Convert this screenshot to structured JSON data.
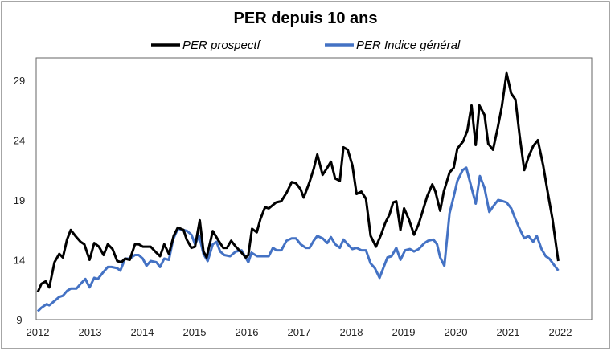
{
  "chart_data": {
    "type": "line",
    "title": "PER depuis 10 ans",
    "xlabel": "",
    "ylabel": "",
    "xlim": [
      2012,
      2022.6
    ],
    "ylim": [
      9,
      31
    ],
    "x_ticks": [
      "2012",
      "2013",
      "2014",
      "2015",
      "2016",
      "2017",
      "2018",
      "2019",
      "2020",
      "2021",
      "2022"
    ],
    "y_ticks": [
      "9",
      "14",
      "19",
      "24",
      "29"
    ],
    "grid": false,
    "legend_position": "top",
    "series": [
      {
        "name": "PER prospectf",
        "color": "#000000",
        "points": [
          [
            2012.0,
            11.3
          ],
          [
            2012.07,
            12.0
          ],
          [
            2012.15,
            12.2
          ],
          [
            2012.22,
            11.7
          ],
          [
            2012.32,
            13.8
          ],
          [
            2012.41,
            14.5
          ],
          [
            2012.48,
            14.2
          ],
          [
            2012.56,
            15.7
          ],
          [
            2012.63,
            16.5
          ],
          [
            2012.72,
            16.0
          ],
          [
            2012.82,
            15.5
          ],
          [
            2012.89,
            15.3
          ],
          [
            2012.99,
            14.0
          ],
          [
            2013.08,
            15.4
          ],
          [
            2013.17,
            15.1
          ],
          [
            2013.26,
            14.4
          ],
          [
            2013.34,
            15.3
          ],
          [
            2013.43,
            14.9
          ],
          [
            2013.52,
            13.9
          ],
          [
            2013.6,
            13.8
          ],
          [
            2013.67,
            14.1
          ],
          [
            2013.76,
            14.0
          ],
          [
            2013.86,
            15.3
          ],
          [
            2013.93,
            15.3
          ],
          [
            2014.01,
            15.1
          ],
          [
            2014.16,
            15.1
          ],
          [
            2014.27,
            14.6
          ],
          [
            2014.34,
            14.3
          ],
          [
            2014.42,
            15.3
          ],
          [
            2014.51,
            14.5
          ],
          [
            2014.6,
            16.0
          ],
          [
            2014.68,
            16.7
          ],
          [
            2014.79,
            16.5
          ],
          [
            2014.85,
            15.7
          ],
          [
            2014.94,
            15.0
          ],
          [
            2015.01,
            15.1
          ],
          [
            2015.1,
            17.3
          ],
          [
            2015.17,
            14.7
          ],
          [
            2015.23,
            14.2
          ],
          [
            2015.35,
            16.4
          ],
          [
            2015.46,
            15.6
          ],
          [
            2015.55,
            15.0
          ],
          [
            2015.62,
            15.0
          ],
          [
            2015.7,
            15.6
          ],
          [
            2015.79,
            15.1
          ],
          [
            2015.9,
            14.6
          ],
          [
            2015.98,
            14.2
          ],
          [
            2016.03,
            14.4
          ],
          [
            2016.1,
            16.6
          ],
          [
            2016.19,
            16.3
          ],
          [
            2016.26,
            17.4
          ],
          [
            2016.35,
            18.4
          ],
          [
            2016.42,
            18.3
          ],
          [
            2016.56,
            18.8
          ],
          [
            2016.66,
            18.9
          ],
          [
            2016.76,
            19.6
          ],
          [
            2016.86,
            20.5
          ],
          [
            2016.94,
            20.4
          ],
          [
            2017.03,
            19.9
          ],
          [
            2017.09,
            19.2
          ],
          [
            2017.2,
            20.5
          ],
          [
            2017.28,
            21.6
          ],
          [
            2017.35,
            22.8
          ],
          [
            2017.45,
            21.1
          ],
          [
            2017.54,
            21.7
          ],
          [
            2017.61,
            22.2
          ],
          [
            2017.69,
            20.8
          ],
          [
            2017.78,
            20.6
          ],
          [
            2017.85,
            23.4
          ],
          [
            2017.93,
            23.2
          ],
          [
            2018.02,
            21.9
          ],
          [
            2018.1,
            19.5
          ],
          [
            2018.19,
            19.7
          ],
          [
            2018.28,
            19.1
          ],
          [
            2018.37,
            16.0
          ],
          [
            2018.47,
            15.1
          ],
          [
            2018.57,
            16.1
          ],
          [
            2018.65,
            17.1
          ],
          [
            2018.73,
            17.8
          ],
          [
            2018.8,
            18.8
          ],
          [
            2018.86,
            18.9
          ],
          [
            2018.94,
            16.5
          ],
          [
            2019.01,
            18.3
          ],
          [
            2019.1,
            17.4
          ],
          [
            2019.2,
            16.1
          ],
          [
            2019.29,
            17.0
          ],
          [
            2019.36,
            18.0
          ],
          [
            2019.45,
            19.3
          ],
          [
            2019.55,
            20.3
          ],
          [
            2019.61,
            19.7
          ],
          [
            2019.7,
            18.1
          ],
          [
            2019.77,
            19.7
          ],
          [
            2019.88,
            21.3
          ],
          [
            2019.96,
            21.7
          ],
          [
            2020.03,
            23.3
          ],
          [
            2020.14,
            23.9
          ],
          [
            2020.22,
            24.8
          ],
          [
            2020.3,
            26.9
          ],
          [
            2020.38,
            23.6
          ],
          [
            2020.45,
            26.9
          ],
          [
            2020.55,
            26.1
          ],
          [
            2020.62,
            23.7
          ],
          [
            2020.71,
            23.2
          ],
          [
            2020.8,
            25.0
          ],
          [
            2020.88,
            26.8
          ],
          [
            2020.97,
            29.6
          ],
          [
            2021.06,
            27.9
          ],
          [
            2021.14,
            27.4
          ],
          [
            2021.22,
            24.4
          ],
          [
            2021.31,
            21.5
          ],
          [
            2021.39,
            22.6
          ],
          [
            2021.48,
            23.5
          ],
          [
            2021.57,
            24.0
          ],
          [
            2021.67,
            21.9
          ],
          [
            2021.76,
            19.6
          ],
          [
            2021.85,
            17.4
          ],
          [
            2021.96,
            13.9
          ]
        ]
      },
      {
        "name": "PER Indice général",
        "color": "#4472C4",
        "points": [
          [
            2012.0,
            9.7
          ],
          [
            2012.07,
            10.0
          ],
          [
            2012.17,
            10.3
          ],
          [
            2012.22,
            10.2
          ],
          [
            2012.33,
            10.6
          ],
          [
            2012.41,
            10.9
          ],
          [
            2012.48,
            11.0
          ],
          [
            2012.56,
            11.4
          ],
          [
            2012.63,
            11.6
          ],
          [
            2012.74,
            11.6
          ],
          [
            2012.82,
            12.0
          ],
          [
            2012.91,
            12.4
          ],
          [
            2012.99,
            11.7
          ],
          [
            2013.08,
            12.5
          ],
          [
            2013.15,
            12.4
          ],
          [
            2013.24,
            12.9
          ],
          [
            2013.34,
            13.4
          ],
          [
            2013.41,
            13.4
          ],
          [
            2013.52,
            13.3
          ],
          [
            2013.58,
            13.1
          ],
          [
            2013.67,
            14.1
          ],
          [
            2013.76,
            14.1
          ],
          [
            2013.86,
            14.4
          ],
          [
            2013.93,
            14.4
          ],
          [
            2014.01,
            14.1
          ],
          [
            2014.08,
            13.5
          ],
          [
            2014.16,
            13.9
          ],
          [
            2014.27,
            13.8
          ],
          [
            2014.34,
            13.4
          ],
          [
            2014.42,
            14.1
          ],
          [
            2014.51,
            14.0
          ],
          [
            2014.59,
            15.7
          ],
          [
            2014.68,
            16.6
          ],
          [
            2014.79,
            16.5
          ],
          [
            2014.86,
            16.4
          ],
          [
            2014.94,
            16.1
          ],
          [
            2015.01,
            15.3
          ],
          [
            2015.09,
            16.0
          ],
          [
            2015.17,
            14.5
          ],
          [
            2015.25,
            13.9
          ],
          [
            2015.35,
            15.3
          ],
          [
            2015.42,
            15.5
          ],
          [
            2015.49,
            14.7
          ],
          [
            2015.57,
            14.4
          ],
          [
            2015.68,
            14.3
          ],
          [
            2015.79,
            14.7
          ],
          [
            2015.9,
            14.8
          ],
          [
            2016.03,
            13.8
          ],
          [
            2016.09,
            14.6
          ],
          [
            2016.2,
            14.3
          ],
          [
            2016.29,
            14.3
          ],
          [
            2016.42,
            14.3
          ],
          [
            2016.5,
            15.0
          ],
          [
            2016.57,
            14.8
          ],
          [
            2016.66,
            14.8
          ],
          [
            2016.76,
            15.6
          ],
          [
            2016.86,
            15.8
          ],
          [
            2016.94,
            15.8
          ],
          [
            2017.03,
            15.3
          ],
          [
            2017.13,
            15.0
          ],
          [
            2017.2,
            15.0
          ],
          [
            2017.28,
            15.6
          ],
          [
            2017.35,
            16.0
          ],
          [
            2017.45,
            15.8
          ],
          [
            2017.54,
            15.4
          ],
          [
            2017.61,
            15.9
          ],
          [
            2017.69,
            15.3
          ],
          [
            2017.78,
            15.0
          ],
          [
            2017.85,
            15.7
          ],
          [
            2017.95,
            15.2
          ],
          [
            2018.02,
            14.9
          ],
          [
            2018.1,
            15.0
          ],
          [
            2018.19,
            14.8
          ],
          [
            2018.28,
            14.8
          ],
          [
            2018.37,
            13.7
          ],
          [
            2018.45,
            13.3
          ],
          [
            2018.54,
            12.5
          ],
          [
            2018.62,
            13.4
          ],
          [
            2018.69,
            14.2
          ],
          [
            2018.77,
            14.3
          ],
          [
            2018.86,
            15.0
          ],
          [
            2018.94,
            14.0
          ],
          [
            2019.03,
            14.8
          ],
          [
            2019.12,
            14.9
          ],
          [
            2019.2,
            14.7
          ],
          [
            2019.29,
            14.9
          ],
          [
            2019.4,
            15.4
          ],
          [
            2019.47,
            15.6
          ],
          [
            2019.57,
            15.7
          ],
          [
            2019.64,
            15.3
          ],
          [
            2019.7,
            14.2
          ],
          [
            2019.78,
            13.5
          ],
          [
            2019.88,
            17.9
          ],
          [
            2019.96,
            19.3
          ],
          [
            2020.03,
            20.6
          ],
          [
            2020.13,
            21.5
          ],
          [
            2020.2,
            21.7
          ],
          [
            2020.29,
            20.2
          ],
          [
            2020.38,
            18.7
          ],
          [
            2020.46,
            21.0
          ],
          [
            2020.55,
            20.0
          ],
          [
            2020.64,
            18.0
          ],
          [
            2020.72,
            18.5
          ],
          [
            2020.81,
            19.0
          ],
          [
            2020.9,
            18.9
          ],
          [
            2020.97,
            18.8
          ],
          [
            2021.06,
            18.3
          ],
          [
            2021.14,
            17.4
          ],
          [
            2021.22,
            16.6
          ],
          [
            2021.31,
            15.8
          ],
          [
            2021.39,
            16.0
          ],
          [
            2021.48,
            15.5
          ],
          [
            2021.55,
            16.0
          ],
          [
            2021.64,
            14.9
          ],
          [
            2021.72,
            14.3
          ],
          [
            2021.79,
            14.1
          ],
          [
            2021.89,
            13.5
          ],
          [
            2021.96,
            13.1
          ]
        ]
      }
    ]
  }
}
